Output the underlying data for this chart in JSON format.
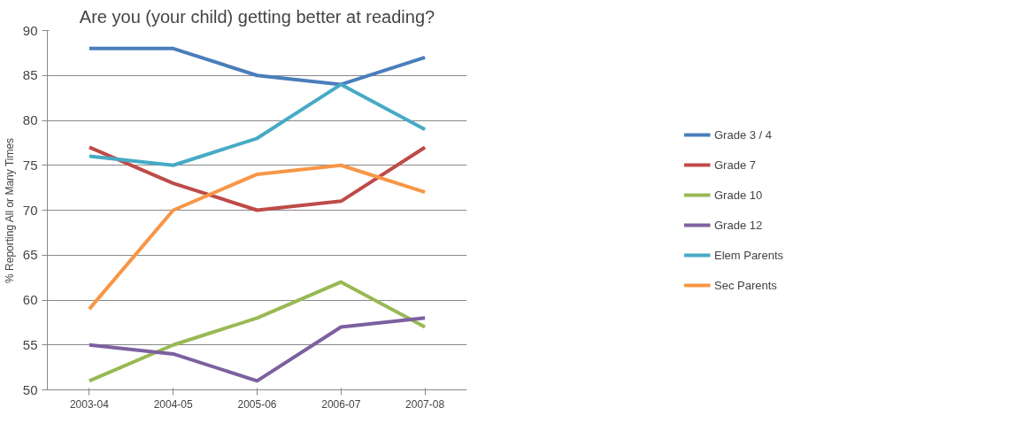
{
  "chart_data": {
    "type": "line",
    "title": "Are you (your child) getting better at reading?",
    "ylabel": "% Reporting All or Many Times",
    "categories": [
      "2003-04",
      "2004-05",
      "2005-06",
      "2006-07",
      "2007-08"
    ],
    "series": [
      {
        "name": "Grade 3 / 4",
        "color": "#4a7ebb",
        "values": [
          88,
          88,
          85,
          84,
          87
        ]
      },
      {
        "name": "Grade 7",
        "color": "#be4b48",
        "values": [
          77,
          73,
          70,
          71,
          77
        ]
      },
      {
        "name": "Grade 10",
        "color": "#98b954",
        "values": [
          51,
          55,
          58,
          62,
          57
        ]
      },
      {
        "name": "Grade 12",
        "color": "#7d60a0",
        "values": [
          55,
          54,
          51,
          57,
          58
        ]
      },
      {
        "name": "Elem Parents",
        "color": "#46aac5",
        "values": [
          76,
          75,
          78,
          84,
          79
        ]
      },
      {
        "name": "Sec Parents",
        "color": "#f79646",
        "values": [
          59,
          70,
          74,
          75,
          72
        ]
      }
    ],
    "ylim": [
      50,
      90
    ],
    "yticks": [
      50,
      55,
      60,
      65,
      70,
      75,
      80,
      85,
      90
    ],
    "grid": "y",
    "legend": "right",
    "marker": "none",
    "line_style": "solid"
  }
}
